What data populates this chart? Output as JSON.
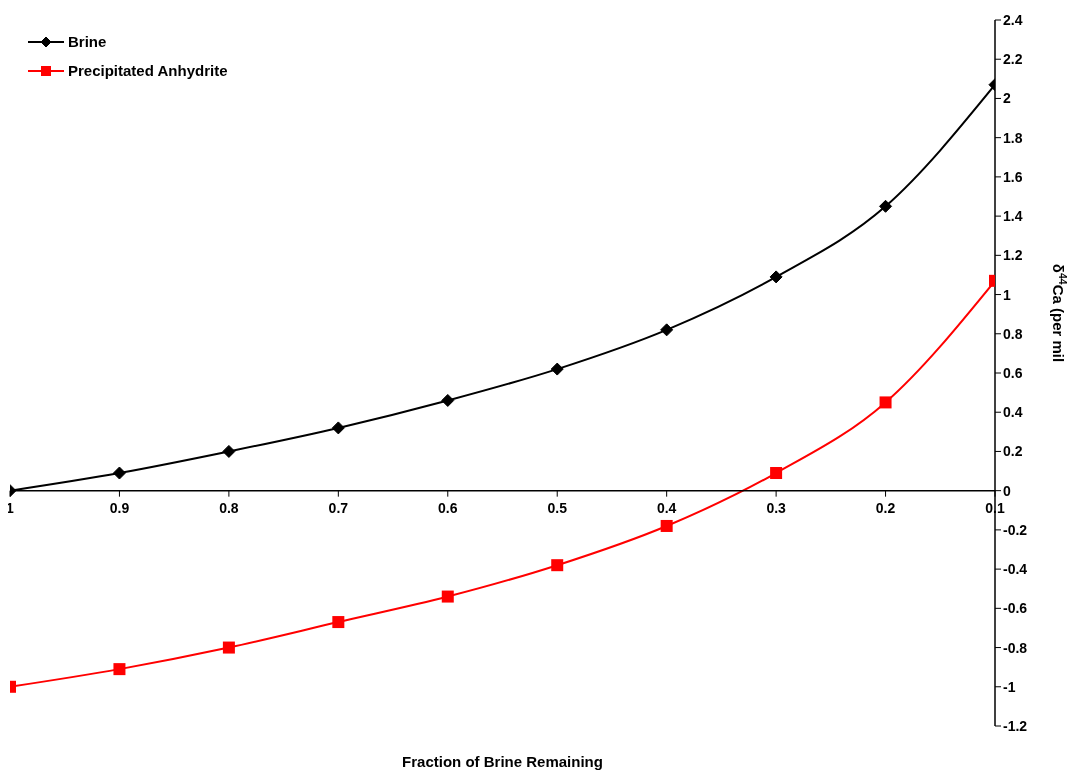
{
  "chart_data": {
    "type": "line",
    "xlabel": "Fraction of Brine Remaining",
    "ylabel": "δ$^{44}$Ca (per mil",
    "x": [
      1,
      0.9,
      0.8,
      0.7,
      0.6,
      0.5,
      0.4,
      0.3,
      0.2,
      0.1
    ],
    "xlim": [
      1,
      0.1
    ],
    "xticks": [
      1,
      0.9,
      0.8,
      0.7,
      0.6,
      0.5,
      0.4,
      0.3,
      0.2,
      0.1
    ],
    "ylim": [
      -1.2,
      2.4
    ],
    "yticks": [
      -1.2,
      -1,
      -0.8,
      -0.6,
      -0.4,
      -0.2,
      0,
      0.2,
      0.4,
      0.6,
      0.8,
      1,
      1.2,
      1.4,
      1.6,
      1.8,
      2,
      2.2,
      2.4
    ],
    "grid": false,
    "legend": "top left",
    "line_style": "solid",
    "series": [
      {
        "name": "Brine",
        "color": "#000000",
        "marker": "diamond",
        "values": [
          0,
          0.09,
          0.2,
          0.32,
          0.46,
          0.62,
          0.82,
          1.09,
          1.45,
          2.07
        ]
      },
      {
        "name": "Precipitated Anhydrite",
        "color": "#ff0000",
        "marker": "square",
        "values": [
          -1,
          -0.91,
          -0.8,
          -0.67,
          -0.54,
          -0.38,
          -0.18,
          0.09,
          0.45,
          1.07
        ]
      }
    ]
  }
}
